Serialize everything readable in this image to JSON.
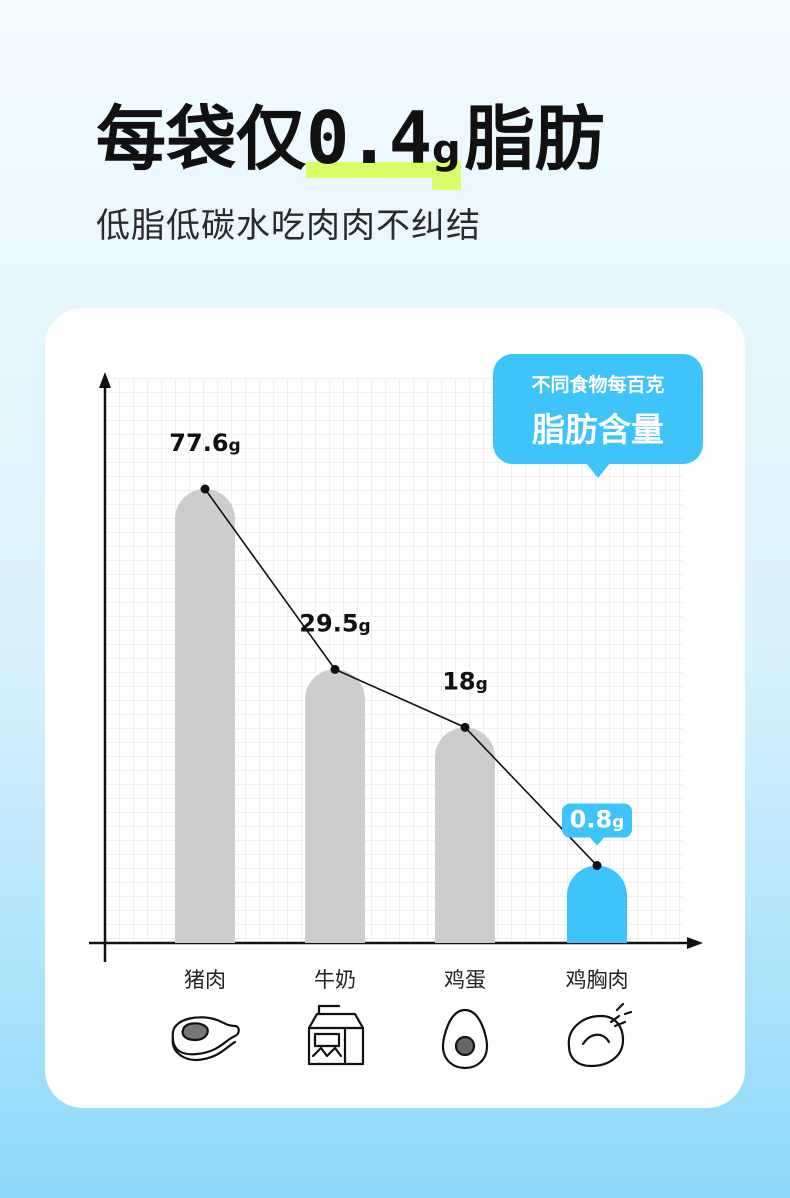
{
  "header": {
    "headline_prefix": "每袋仅",
    "headline_number": "0.4",
    "headline_unit": "g",
    "headline_suffix": "脂肪",
    "subtitle": "低脂低碳水吃肉肉不纠结"
  },
  "badge": {
    "line1": "不同食物每百克",
    "line2": "脂肪含量"
  },
  "colors": {
    "bar_grey": "#cdcdcd",
    "highlight_blue": "#3fc3fb",
    "accent_lime": "#d8ff6a",
    "axis": "#111111"
  },
  "chart_data": {
    "type": "bar",
    "title": "脂肪含量",
    "categories": [
      "猪肉",
      "牛奶",
      "鸡蛋",
      "鸡胸肉"
    ],
    "values": [
      77.6,
      29.5,
      18,
      0.8
    ],
    "unit": "g",
    "value_labels": [
      "77.6g",
      "29.5g",
      "18g",
      "0.8g"
    ],
    "highlight_index": 3,
    "connector_line": true,
    "grid": true,
    "icons": [
      "pork-steak-icon",
      "milk-carton-icon",
      "egg-icon",
      "chicken-icon"
    ]
  }
}
